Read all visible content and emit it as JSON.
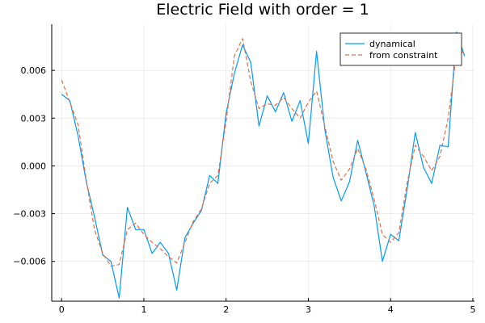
{
  "chart_data": {
    "type": "line",
    "title": "Electric Field with order = 1",
    "xlabel": "",
    "ylabel": "",
    "xlim": [
      -0.12,
      5.02
    ],
    "ylim": [
      -0.0085,
      0.0089
    ],
    "xticks": [
      0,
      1,
      2,
      3,
      4,
      5
    ],
    "xtick_labels": [
      "0",
      "1",
      "2",
      "3",
      "4",
      "5"
    ],
    "yticks": [
      -0.006,
      -0.003,
      0.0,
      0.003,
      0.006
    ],
    "ytick_labels": [
      "−0.006",
      "−0.003",
      "0.000",
      "0.003",
      "0.006"
    ],
    "grid": true,
    "legend_position": "top-right",
    "series": [
      {
        "name": "dynamical",
        "color": "#009AFA",
        "dash": "solid",
        "x": [
          0.0,
          0.1,
          0.2,
          0.3,
          0.4,
          0.5,
          0.6,
          0.7,
          0.8,
          0.9,
          1.0,
          1.1,
          1.2,
          1.3,
          1.4,
          1.5,
          1.6,
          1.7,
          1.8,
          1.9,
          2.0,
          2.1,
          2.2,
          2.3,
          2.4,
          2.5,
          2.6,
          2.7,
          2.8,
          2.9,
          3.0,
          3.1,
          3.2,
          3.3,
          3.4,
          3.5,
          3.6,
          3.7,
          3.8,
          3.9,
          4.0,
          4.1,
          4.2,
          4.3,
          4.4,
          4.5,
          4.6,
          4.7,
          4.8,
          4.9
        ],
        "y": [
          0.0045,
          0.0041,
          0.0019,
          -0.001,
          -0.0032,
          -0.0056,
          -0.006,
          -0.0083,
          -0.0026,
          -0.004,
          -0.004,
          -0.0055,
          -0.0048,
          -0.0055,
          -0.0078,
          -0.0045,
          -0.0036,
          -0.0028,
          -0.0006,
          -0.0011,
          0.0033,
          0.0058,
          0.0076,
          0.0065,
          0.0025,
          0.0044,
          0.0034,
          0.0046,
          0.0028,
          0.0041,
          0.0014,
          0.0072,
          0.0023,
          -0.0007,
          -0.0022,
          -0.001,
          0.0016,
          -0.0004,
          -0.0025,
          -0.006,
          -0.0043,
          -0.0047,
          -0.0015,
          0.0021,
          -0.0001,
          -0.0011,
          0.0013,
          0.0012,
          0.0084,
          0.0069
        ]
      },
      {
        "name": "from constraint",
        "color": "#E26F46",
        "dash": "dashed",
        "x": [
          0.0,
          0.1,
          0.2,
          0.3,
          0.4,
          0.5,
          0.6,
          0.7,
          0.8,
          0.9,
          1.0,
          1.1,
          1.2,
          1.3,
          1.4,
          1.5,
          1.6,
          1.7,
          1.8,
          1.9,
          2.0,
          2.1,
          2.2,
          2.3,
          2.4,
          2.5,
          2.6,
          2.7,
          2.8,
          2.9,
          3.0,
          3.1,
          3.2,
          3.3,
          3.4,
          3.5,
          3.6,
          3.7,
          3.8,
          3.9,
          4.0,
          4.1,
          4.2,
          4.3,
          4.4,
          4.5,
          4.6,
          4.7,
          4.8,
          4.9
        ],
        "y": [
          0.0054,
          0.004,
          0.0026,
          -0.0009,
          -0.004,
          -0.0055,
          -0.0063,
          -0.0062,
          -0.004,
          -0.0036,
          -0.0043,
          -0.0048,
          -0.0052,
          -0.0057,
          -0.0061,
          -0.0048,
          -0.0035,
          -0.0027,
          -0.0011,
          -0.0006,
          0.0028,
          0.0069,
          0.008,
          0.0053,
          0.0036,
          0.0039,
          0.0038,
          0.0043,
          0.0036,
          0.003,
          0.004,
          0.0047,
          0.0025,
          0.0003,
          -0.0009,
          -0.0002,
          0.0011,
          -0.0002,
          -0.0021,
          -0.0043,
          -0.0048,
          -0.0042,
          -0.0011,
          0.0013,
          0.0006,
          -0.0003,
          0.0006,
          0.003,
          0.007,
          0.0072
        ]
      }
    ]
  }
}
